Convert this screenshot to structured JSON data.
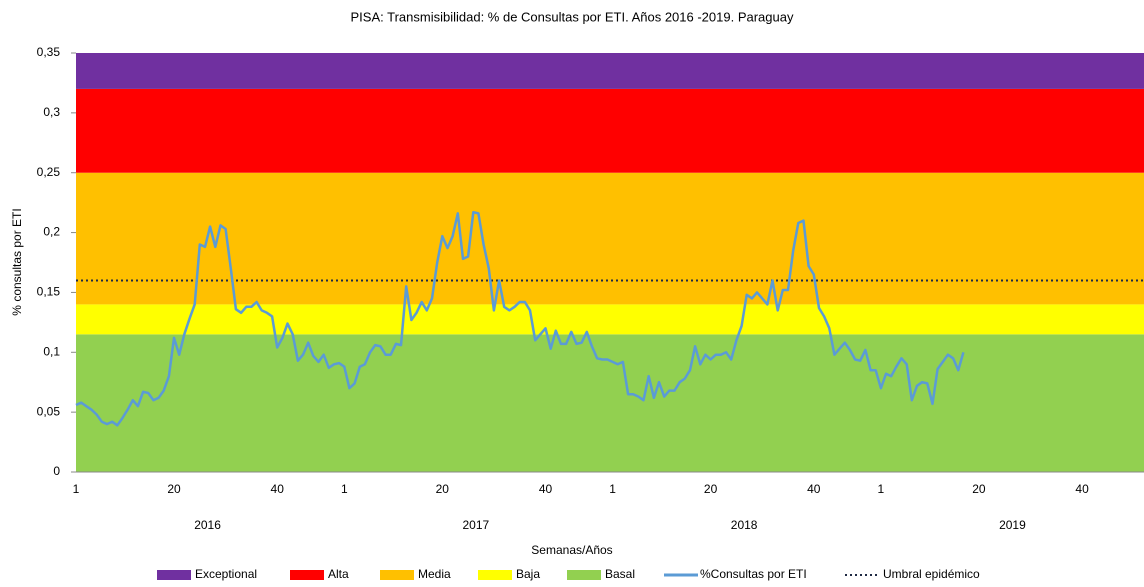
{
  "chart_data": {
    "type": "line",
    "title": "PISA: Transmisibilidad: % de Consultas por ETI. Años 2016 -2019. Paraguay",
    "x_label": "Semanas/Años",
    "y_label": "% consultas por ETI",
    "category_groups": [
      "2016",
      "2017",
      "2018",
      "2019"
    ],
    "categories": [
      "1",
      null,
      null,
      null,
      null,
      null,
      null,
      null,
      null,
      null,
      null,
      null,
      null,
      null,
      null,
      null,
      null,
      null,
      null,
      "20",
      null,
      null,
      null,
      null,
      null,
      null,
      null,
      null,
      null,
      null,
      null,
      null,
      null,
      null,
      null,
      null,
      null,
      null,
      null,
      "40",
      null,
      null,
      null,
      null,
      null,
      null,
      null,
      null,
      null,
      null,
      null,
      null,
      "1",
      null,
      null,
      null,
      null,
      null,
      null,
      null,
      null,
      null,
      null,
      null,
      null,
      null,
      null,
      null,
      null,
      null,
      null,
      "20",
      null,
      null,
      null,
      null,
      null,
      null,
      null,
      null,
      null,
      null,
      null,
      null,
      null,
      null,
      null,
      null,
      null,
      null,
      null,
      "40",
      null,
      null,
      null,
      null,
      null,
      null,
      null,
      null,
      null,
      null,
      null,
      null,
      "1",
      null,
      null,
      null,
      null,
      null,
      null,
      null,
      null,
      null,
      null,
      null,
      null,
      null,
      null,
      null,
      null,
      null,
      null,
      "20",
      null,
      null,
      null,
      null,
      null,
      null,
      null,
      null,
      null,
      null,
      null,
      null,
      null,
      null,
      null,
      null,
      null,
      null,
      null,
      "40",
      null,
      null,
      null,
      null,
      null,
      null,
      null,
      null,
      null,
      null,
      null,
      null,
      "1",
      null,
      null,
      null,
      null,
      null,
      null,
      null,
      null,
      null,
      null,
      null,
      null,
      null,
      null,
      null,
      null,
      null,
      null,
      "20",
      null,
      null,
      null,
      null,
      null,
      null,
      null,
      null,
      null,
      null,
      null,
      null,
      null,
      null,
      null,
      null,
      null,
      null,
      null,
      "40",
      null,
      null,
      null,
      null,
      null,
      null,
      null,
      null,
      null,
      null,
      null,
      null
    ],
    "bands": [
      {
        "name": "Basal",
        "color": "#92d050",
        "value": 0.115
      },
      {
        "name": "Baja",
        "color": "#ffff00",
        "value": 0.025
      },
      {
        "name": "Media",
        "color": "#ffc000",
        "value": 0.11
      },
      {
        "name": "Alta",
        "color": "#ff0000",
        "value": 0.07
      },
      {
        "name": "Exceptional",
        "color": "#7030a0",
        "value": 0.03
      }
    ],
    "series": [
      {
        "name": "%Consultas por ETI",
        "color": "#5b9bd5",
        "values": [
          0.056,
          0.058,
          0.055,
          0.052,
          0.048,
          0.042,
          0.04,
          0.042,
          0.039,
          0.045,
          0.052,
          0.06,
          0.055,
          0.067,
          0.066,
          0.06,
          0.062,
          0.068,
          0.08,
          0.112,
          0.098,
          0.115,
          0.128,
          0.14,
          0.19,
          0.188,
          0.205,
          0.188,
          0.206,
          0.203,
          0.17,
          0.136,
          0.133,
          0.138,
          0.138,
          0.142,
          0.135,
          0.133,
          0.13,
          0.104,
          0.112,
          0.124,
          0.115,
          0.093,
          0.098,
          0.108,
          0.097,
          0.092,
          0.098,
          0.087,
          0.09,
          0.091,
          0.088,
          0.07,
          0.074,
          0.088,
          0.09,
          0.1,
          0.106,
          0.105,
          0.098,
          0.098,
          0.107,
          0.106,
          0.155,
          0.127,
          0.133,
          0.142,
          0.135,
          0.145,
          0.175,
          0.197,
          0.187,
          0.197,
          0.216,
          0.178,
          0.18,
          0.217,
          0.216,
          0.19,
          0.17,
          0.135,
          0.16,
          0.138,
          0.135,
          0.138,
          0.142,
          0.142,
          0.135,
          0.11,
          0.115,
          0.12,
          0.103,
          0.118,
          0.107,
          0.107,
          0.117,
          0.107,
          0.108,
          0.117,
          0.105,
          0.095,
          0.094,
          0.094,
          0.092,
          0.09,
          0.092,
          0.065,
          0.065,
          0.063,
          0.06,
          0.08,
          0.062,
          0.075,
          0.063,
          0.068,
          0.068,
          0.075,
          0.078,
          0.085,
          0.105,
          0.09,
          0.098,
          0.094,
          0.098,
          0.098,
          0.1,
          0.094,
          0.11,
          0.122,
          0.148,
          0.145,
          0.15,
          0.145,
          0.14,
          0.16,
          0.135,
          0.152,
          0.152,
          0.185,
          0.208,
          0.21,
          0.172,
          0.165,
          0.137,
          0.13,
          0.12,
          0.098,
          0.103,
          0.108,
          0.102,
          0.094,
          0.093,
          0.102,
          0.085,
          0.085,
          0.07,
          0.082,
          0.08,
          0.088,
          0.095,
          0.09,
          0.06,
          0.072,
          0.075,
          0.074,
          0.057,
          0.086,
          0.092,
          0.098,
          0.095,
          0.085,
          0.1,
          null,
          null,
          null,
          null,
          null,
          null,
          null,
          null,
          null,
          null,
          null,
          null,
          null,
          null,
          null,
          null,
          null,
          null,
          null,
          null,
          null,
          null,
          null,
          null,
          null,
          null,
          null,
          null,
          null,
          null,
          null,
          null,
          null,
          null,
          null
        ]
      }
    ],
    "threshold": {
      "name": "Umbral epidémico",
      "color": "#1f2a44",
      "value": 0.16
    },
    "ylim": [
      0,
      0.35
    ],
    "yticks": [
      0,
      {
        "value": 0.05,
        "label": "0,05"
      },
      {
        "value": 0.1,
        "label": "0,1"
      },
      {
        "value": 0.15,
        "label": "0,15"
      },
      {
        "value": 0.2,
        "label": "0,2"
      },
      {
        "value": 0.25,
        "label": "0,25"
      },
      {
        "value": 0.3,
        "label": "0,3"
      },
      {
        "value": 0.35,
        "label": "0,35"
      }
    ],
    "grid": false
  }
}
